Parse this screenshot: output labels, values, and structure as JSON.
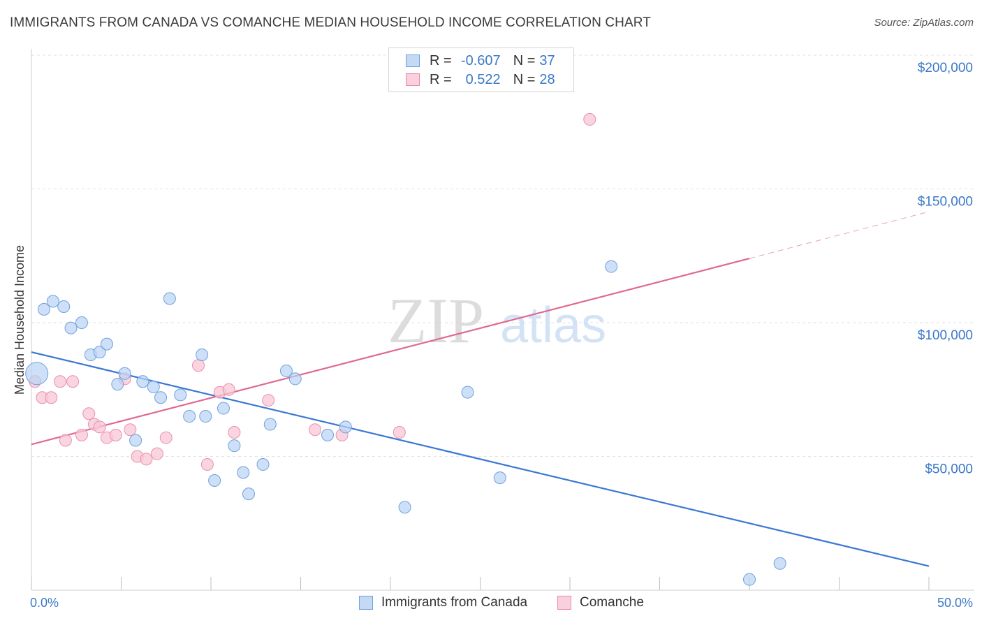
{
  "title": "IMMIGRANTS FROM CANADA VS COMANCHE MEDIAN HOUSEHOLD INCOME CORRELATION CHART",
  "source": "Source: ZipAtlas.com",
  "watermark": {
    "zip": "ZIP",
    "atlas": "atlas"
  },
  "legend": {
    "rows": [
      {
        "r_label": "R =",
        "r_value": "-0.607",
        "n_label": "N =",
        "n_value": "37",
        "color": "#a9c8f0",
        "border": "#6fa0dc"
      },
      {
        "r_label": "R =",
        "r_value": "0.522",
        "n_label": "N =",
        "n_value": "28",
        "color": "#f7bfd0",
        "border": "#e88aa8"
      }
    ]
  },
  "bottom_legend": [
    "Immigrants from Canada",
    "Comanche"
  ],
  "colors": {
    "blue": "#3a78d4",
    "pink": "#e06890",
    "blue_fill": "#b8d3f3",
    "pink_fill": "#f8c7d6"
  },
  "chart_data": {
    "type": "scatter",
    "title": "IMMIGRANTS FROM CANADA VS COMANCHE MEDIAN HOUSEHOLD INCOME CORRELATION CHART",
    "xlabel": "",
    "ylabel": "Median Household Income",
    "xlim": [
      0,
      50
    ],
    "ylim": [
      0,
      210000
    ],
    "x_tick_labels": [
      "0.0%",
      "50.0%"
    ],
    "y_ticks": [
      50000,
      100000,
      150000,
      200000
    ],
    "y_tick_labels": [
      "$50,000",
      "$100,000",
      "$150,000",
      "$200,000"
    ],
    "grid": true,
    "series": [
      {
        "name": "Immigrants from Canada",
        "points": [
          [
            0.3,
            81000
          ],
          [
            0.7,
            105000
          ],
          [
            1.2,
            108000
          ],
          [
            1.8,
            106000
          ],
          [
            2.2,
            98000
          ],
          [
            2.8,
            100000
          ],
          [
            3.3,
            88000
          ],
          [
            3.8,
            89000
          ],
          [
            4.2,
            92000
          ],
          [
            4.8,
            77000
          ],
          [
            5.2,
            81000
          ],
          [
            5.8,
            56000
          ],
          [
            6.2,
            78000
          ],
          [
            6.8,
            76000
          ],
          [
            7.2,
            72000
          ],
          [
            7.7,
            109000
          ],
          [
            8.3,
            73000
          ],
          [
            8.8,
            65000
          ],
          [
            9.5,
            88000
          ],
          [
            9.7,
            65000
          ],
          [
            10.2,
            41000
          ],
          [
            10.7,
            68000
          ],
          [
            11.3,
            54000
          ],
          [
            11.8,
            44000
          ],
          [
            12.1,
            36000
          ],
          [
            12.9,
            47000
          ],
          [
            13.3,
            62000
          ],
          [
            14.2,
            82000
          ],
          [
            14.7,
            79000
          ],
          [
            16.5,
            58000
          ],
          [
            17.5,
            61000
          ],
          [
            20.8,
            31000
          ],
          [
            24.3,
            74000
          ],
          [
            26.1,
            42000
          ],
          [
            32.3,
            121000
          ],
          [
            40.0,
            4000
          ],
          [
            41.7,
            10000
          ]
        ],
        "trend": {
          "x": [
            0,
            50
          ],
          "y": [
            89000,
            9000
          ]
        }
      },
      {
        "name": "Comanche",
        "points": [
          [
            0.2,
            78000
          ],
          [
            0.6,
            72000
          ],
          [
            1.1,
            72000
          ],
          [
            1.9,
            56000
          ],
          [
            1.6,
            78000
          ],
          [
            2.3,
            78000
          ],
          [
            2.8,
            58000
          ],
          [
            3.2,
            66000
          ],
          [
            3.5,
            62000
          ],
          [
            3.8,
            61000
          ],
          [
            4.2,
            57000
          ],
          [
            4.7,
            58000
          ],
          [
            5.2,
            79000
          ],
          [
            5.5,
            60000
          ],
          [
            5.9,
            50000
          ],
          [
            6.4,
            49000
          ],
          [
            7.0,
            51000
          ],
          [
            7.5,
            57000
          ],
          [
            9.3,
            84000
          ],
          [
            9.8,
            47000
          ],
          [
            10.5,
            74000
          ],
          [
            11.0,
            75000
          ],
          [
            11.3,
            59000
          ],
          [
            13.2,
            71000
          ],
          [
            15.8,
            60000
          ],
          [
            17.3,
            58000
          ],
          [
            20.5,
            59000
          ],
          [
            31.1,
            176000
          ]
        ],
        "trend": {
          "x": [
            0,
            40
          ],
          "y": [
            54500,
            124000
          ]
        },
        "trend_dashed": {
          "x": [
            40,
            50
          ],
          "y": [
            124000,
            141500
          ]
        }
      }
    ]
  }
}
